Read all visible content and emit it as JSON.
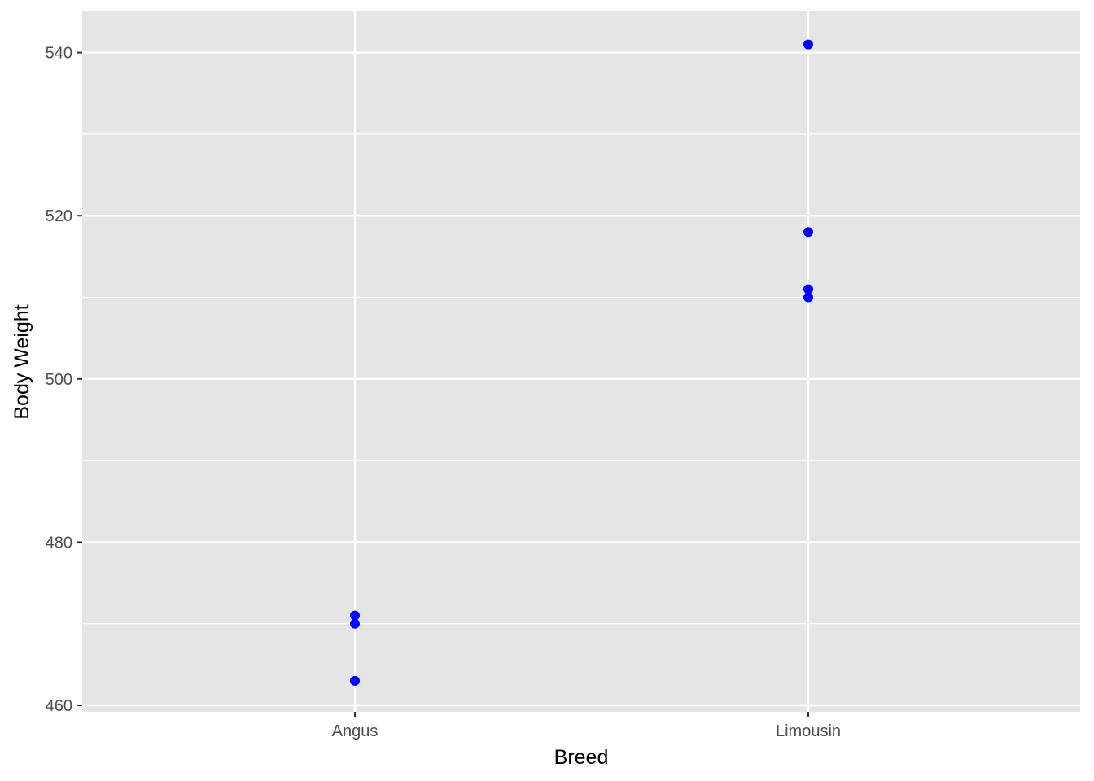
{
  "chart_data": {
    "type": "scatter",
    "title": "",
    "xlabel": "Breed",
    "ylabel": "Body Weight",
    "categories": [
      "Angus",
      "Limousin"
    ],
    "ylim": [
      459.5,
      545
    ],
    "yticks": [
      460,
      480,
      500,
      520,
      540
    ],
    "grid": true,
    "legend": "none",
    "colors": {
      "panel": "#e5e5e5",
      "grid": "#ffffff",
      "point": "#0000ff",
      "tick_text": "#4d4d4d"
    },
    "series": [
      {
        "points": [
          {
            "x": "Angus",
            "y": 471
          },
          {
            "x": "Angus",
            "y": 470
          },
          {
            "x": "Angus",
            "y": 463
          },
          {
            "x": "Limousin",
            "y": 541
          },
          {
            "x": "Limousin",
            "y": 518
          },
          {
            "x": "Limousin",
            "y": 511
          },
          {
            "x": "Limousin",
            "y": 510
          }
        ]
      }
    ]
  }
}
